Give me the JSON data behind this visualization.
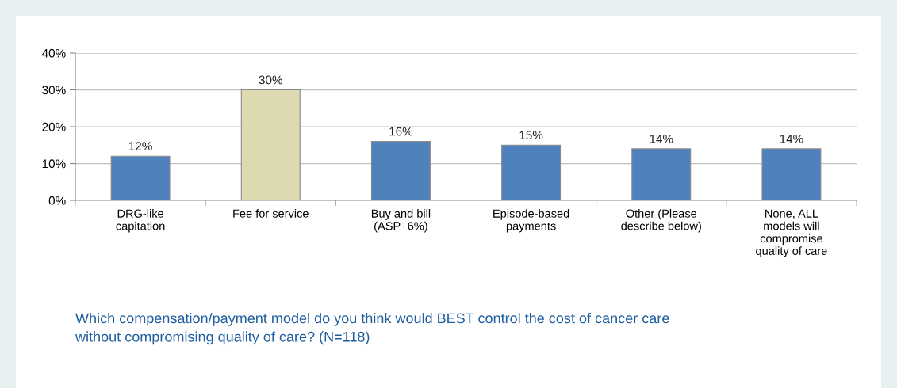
{
  "chart_data": {
    "type": "bar",
    "categories": [
      "DRG-like\ncapitation",
      "Fee for service",
      "Buy and bill\n(ASP+6%)",
      "Episode-based\npayments",
      "Other (Please\ndescribe below)",
      "None, ALL\nmodels will\ncompromise\nquality of care"
    ],
    "values": [
      12,
      30,
      16,
      15,
      14,
      14
    ],
    "colors": [
      "#4f81bd",
      "#ddd9b0",
      "#4f81bd",
      "#4f81bd",
      "#4f81bd",
      "#4f81bd"
    ],
    "value_labels": [
      "12%",
      "30%",
      "16%",
      "15%",
      "14%",
      "14%"
    ],
    "ylim": [
      0,
      40
    ],
    "yticks": [
      {
        "value": 0,
        "label": "0%"
      },
      {
        "value": 10,
        "label": "10%"
      },
      {
        "value": 20,
        "label": "20%"
      },
      {
        "value": 30,
        "label": "30%"
      },
      {
        "value": 40,
        "label": "40%"
      }
    ],
    "grid": "y",
    "annotations": [
      "Which compensation/payment model do you think would BEST control the cost of cancer care\nwithout compromising quality of care? (N=118)"
    ]
  }
}
